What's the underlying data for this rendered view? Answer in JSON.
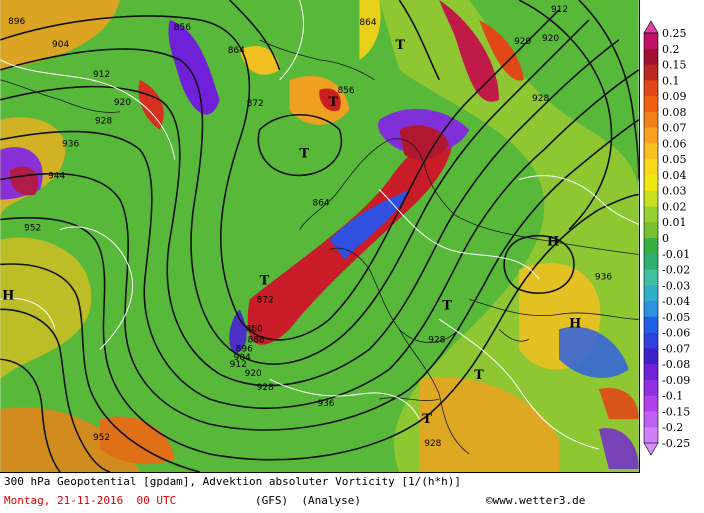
{
  "caption": {
    "line1": "300 hPa Geopotential [gpdam], Advektion absoluter Vorticity [1/(h*h)]",
    "date": "Montag, 21-11-2016  00 UTC",
    "model": "(GFS)  (Analyse)",
    "credit": "©www.wetter3.de"
  },
  "legend": {
    "values": [
      "0.25",
      "0.2",
      "0.15",
      "0.1",
      "0.09",
      "0.08",
      "0.07",
      "0.06",
      "0.05",
      "0.04",
      "0.03",
      "0.02",
      "0.01",
      "0",
      "-0.01",
      "-0.02",
      "-0.03",
      "-0.04",
      "-0.05",
      "-0.06",
      "-0.07",
      "-0.08",
      "-0.09",
      "-0.1",
      "-0.15",
      "-0.2",
      "-0.25"
    ],
    "colors": [
      "#c0106a",
      "#a01030",
      "#b82820",
      "#e04818",
      "#f06010",
      "#f08018",
      "#f8a020",
      "#f8c020",
      "#f8d818",
      "#f0e810",
      "#c8e020",
      "#98d030",
      "#78c030",
      "#38b040",
      "#30b070",
      "#40c0a0",
      "#30b0c8",
      "#3090e0",
      "#2060e8",
      "#3040e0",
      "#4020c8",
      "#7020d8",
      "#9030e0",
      "#b040e8",
      "#c060f0",
      "#d080f8"
    ]
  },
  "map": {
    "contour_labels": [
      "896",
      "904",
      "856",
      "864",
      "864",
      "912",
      "920",
      "912",
      "920",
      "928",
      "936",
      "944",
      "952",
      "872",
      "856",
      "864",
      "872",
      "880",
      "888",
      "896",
      "904",
      "912",
      "920",
      "928",
      "936",
      "928",
      "936",
      "928",
      "952",
      "920",
      "928"
    ],
    "highs": [
      "H",
      "H",
      "H"
    ],
    "lows": [
      "T",
      "T",
      "T",
      "T",
      "T",
      "T",
      "T"
    ]
  }
}
